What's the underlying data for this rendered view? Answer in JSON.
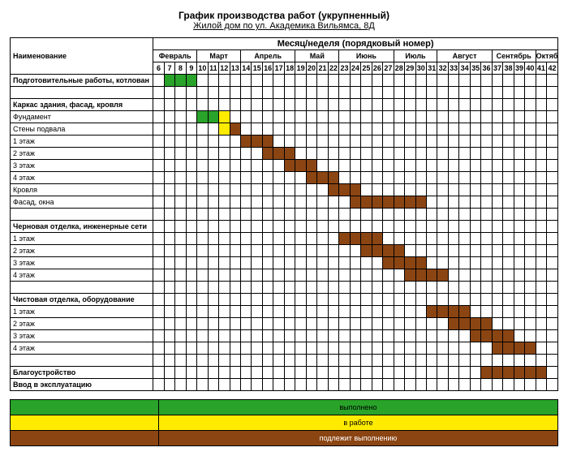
{
  "title": "График производства работ (укрупненный)",
  "subtitle": "Жилой дом по ул. Академика Вильямса, 8Д",
  "col_header_name": "Наименование",
  "col_header_period": "Месяц/неделя (порядковый номер)",
  "week_start": 6,
  "week_end": 42,
  "months": [
    {
      "label": "Февраль",
      "span": 4
    },
    {
      "label": "Март",
      "span": 4
    },
    {
      "label": "Апрель",
      "span": 5
    },
    {
      "label": "Май",
      "span": 4
    },
    {
      "label": "Июнь",
      "span": 5
    },
    {
      "label": "Июль",
      "span": 4
    },
    {
      "label": "Август",
      "span": 5
    },
    {
      "label": "Сентябрь",
      "span": 4
    },
    {
      "label": "Октябрь",
      "span": 2
    }
  ],
  "colors": {
    "done": "#29a329",
    "inwork": "#ffeb00",
    "planned": "#8b4513",
    "bg": "#ffffff",
    "grid": "#000000"
  },
  "rows": [
    {
      "label": "Подготовительные работы, котлован",
      "section": true,
      "bars": [
        {
          "from": 7,
          "to": 9,
          "status": "done"
        }
      ]
    },
    {
      "label": "",
      "section": false,
      "bars": []
    },
    {
      "label": "Каркас здания, фасад, кровля",
      "section": true,
      "bars": []
    },
    {
      "label": "Фундамент",
      "bars": [
        {
          "from": 10,
          "to": 11,
          "status": "done"
        },
        {
          "from": 12,
          "to": 12,
          "status": "inwork"
        }
      ]
    },
    {
      "label": "Стены подвала",
      "bars": [
        {
          "from": 12,
          "to": 12,
          "status": "inwork"
        },
        {
          "from": 13,
          "to": 13,
          "status": "planned"
        }
      ]
    },
    {
      "label": "1 этаж",
      "bars": [
        {
          "from": 14,
          "to": 16,
          "status": "planned"
        }
      ]
    },
    {
      "label": "2 этаж",
      "bars": [
        {
          "from": 16,
          "to": 18,
          "status": "planned"
        }
      ]
    },
    {
      "label": "3 этаж",
      "bars": [
        {
          "from": 18,
          "to": 20,
          "status": "planned"
        }
      ]
    },
    {
      "label": "4 этаж",
      "bars": [
        {
          "from": 20,
          "to": 22,
          "status": "planned"
        }
      ]
    },
    {
      "label": "Кровля",
      "bars": [
        {
          "from": 22,
          "to": 24,
          "status": "planned"
        }
      ]
    },
    {
      "label": "Фасад, окна",
      "bars": [
        {
          "from": 24,
          "to": 30,
          "status": "planned"
        }
      ]
    },
    {
      "label": "",
      "bars": []
    },
    {
      "label": "Черновая отделка, инженерные сети",
      "section": true,
      "bars": []
    },
    {
      "label": "1 этаж",
      "bars": [
        {
          "from": 23,
          "to": 26,
          "status": "planned"
        }
      ]
    },
    {
      "label": "2 этаж",
      "bars": [
        {
          "from": 25,
          "to": 28,
          "status": "planned"
        }
      ]
    },
    {
      "label": "3 этаж",
      "bars": [
        {
          "from": 27,
          "to": 30,
          "status": "planned"
        }
      ]
    },
    {
      "label": "4 этаж",
      "bars": [
        {
          "from": 29,
          "to": 32,
          "status": "planned"
        }
      ]
    },
    {
      "label": "",
      "bars": []
    },
    {
      "label": "Чистовая отделка, оборудование",
      "section": true,
      "bars": []
    },
    {
      "label": "1 этаж",
      "bars": [
        {
          "from": 31,
          "to": 34,
          "status": "planned"
        }
      ]
    },
    {
      "label": "2 этаж",
      "bars": [
        {
          "from": 33,
          "to": 36,
          "status": "planned"
        }
      ]
    },
    {
      "label": "3 этаж",
      "bars": [
        {
          "from": 35,
          "to": 38,
          "status": "planned"
        }
      ]
    },
    {
      "label": "4 этаж",
      "bars": [
        {
          "from": 37,
          "to": 40,
          "status": "planned"
        }
      ]
    },
    {
      "label": "",
      "bars": []
    },
    {
      "label": "Благоустройство",
      "section": true,
      "bars": [
        {
          "from": 36,
          "to": 41,
          "status": "planned"
        }
      ]
    },
    {
      "label": "Ввод в эксплуатацию",
      "section": true,
      "bars": []
    }
  ],
  "legend": [
    {
      "label": "выполнено",
      "status": "done"
    },
    {
      "label": "в работе",
      "status": "inwork"
    },
    {
      "label": "подлежит выполнению",
      "status": "planned",
      "text_color": "#ffffff"
    }
  ]
}
